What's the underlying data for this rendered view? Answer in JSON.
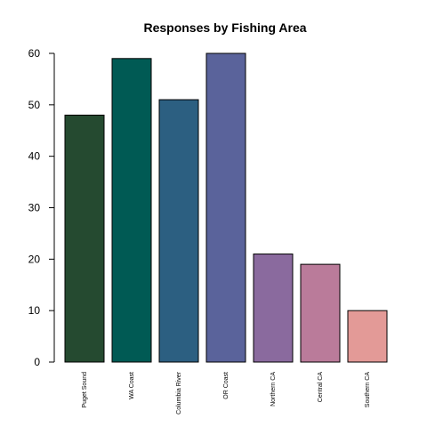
{
  "chart_data": {
    "type": "bar",
    "title": "Responses by Fishing Area",
    "xlabel": "",
    "ylabel": "",
    "categories": [
      "Puget Sound",
      "WA Coast",
      "Columbia River",
      "OR Coast",
      "Northern CA",
      "Central CA",
      "Southern CA"
    ],
    "values": [
      48,
      59,
      51,
      60,
      21,
      19,
      10
    ],
    "colors": [
      "#254A30",
      "#005A54",
      "#2C5F81",
      "#5A639B",
      "#8A6A9E",
      "#BA7B9A",
      "#E39A97"
    ],
    "yticks": [
      0,
      10,
      20,
      30,
      40,
      50,
      60
    ],
    "ylim": [
      0,
      60
    ],
    "grid": false,
    "legend": false
  }
}
